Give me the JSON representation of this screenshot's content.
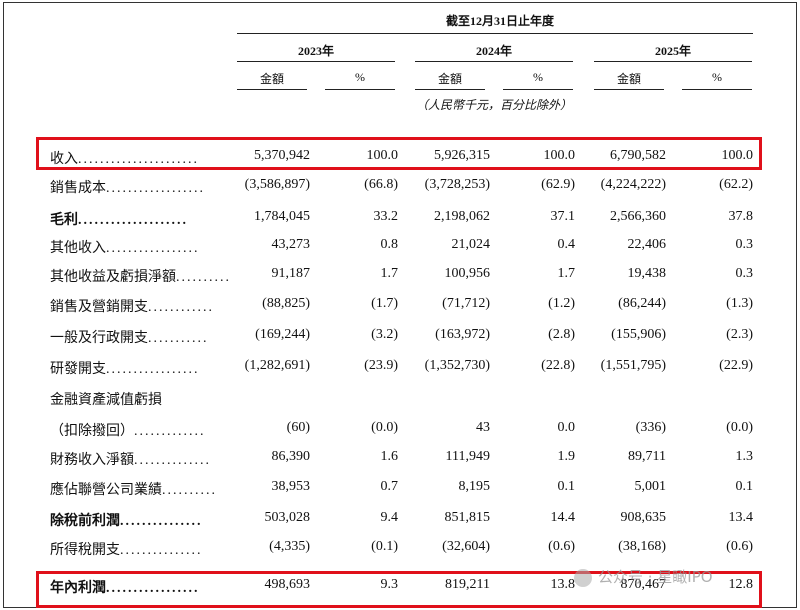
{
  "header": {
    "period": "截至12月31日止年度",
    "years": [
      "2023年",
      "2024年",
      "2025年"
    ],
    "col_amount": "金額",
    "col_pct": "%",
    "unit": "（人民幣千元，百分比除外）"
  },
  "rows": [
    {
      "label": "收入",
      "dots": "......................",
      "v": [
        "5,370,942",
        "100.0",
        "5,926,315",
        "100.0",
        "6,790,582",
        "100.0"
      ]
    },
    {
      "label": "銷售成本",
      "dots": "..................",
      "v": [
        "(3,586,897)",
        "(66.8)",
        "(3,728,253)",
        "(62.9)",
        "(4,224,222)",
        "(62.2)"
      ]
    },
    {
      "label": "毛利",
      "dots": "....................",
      "v": [
        "1,784,045",
        "33.2",
        "2,198,062",
        "37.1",
        "2,566,360",
        "37.8"
      ]
    },
    {
      "label": "其他收入",
      "dots": ".................",
      "v": [
        "43,273",
        "0.8",
        "21,024",
        "0.4",
        "22,406",
        "0.3"
      ]
    },
    {
      "label": "其他收益及虧損淨額",
      "dots": "..........",
      "v": [
        "91,187",
        "1.7",
        "100,956",
        "1.7",
        "19,438",
        "0.3"
      ]
    },
    {
      "label": "銷售及營銷開支",
      "dots": "............",
      "v": [
        "(88,825)",
        "(1.7)",
        "(71,712)",
        "(1.2)",
        "(86,244)",
        "(1.3)"
      ]
    },
    {
      "label": "一般及行政開支",
      "dots": "...........",
      "v": [
        "(169,244)",
        "(3.2)",
        "(163,972)",
        "(2.8)",
        "(155,906)",
        "(2.3)"
      ]
    },
    {
      "label": "研發開支",
      "dots": ".................",
      "v": [
        "(1,282,691)",
        "(23.9)",
        "(1,352,730)",
        "(22.8)",
        "(1,551,795)",
        "(22.9)"
      ]
    },
    {
      "label": "金融資產減值虧損",
      "dots": "",
      "v": [
        "",
        "",
        "",
        "",
        "",
        ""
      ]
    },
    {
      "label": "（扣除撥回）",
      "dots": ".............",
      "v": [
        "(60)",
        "(0.0)",
        "43",
        "0.0",
        "(336)",
        "(0.0)"
      ]
    },
    {
      "label": "財務收入淨額",
      "dots": "..............",
      "v": [
        "86,390",
        "1.6",
        "111,949",
        "1.9",
        "89,711",
        "1.3"
      ]
    },
    {
      "label": "應佔聯營公司業績",
      "dots": "..........",
      "v": [
        "38,953",
        "0.7",
        "8,195",
        "0.1",
        "5,001",
        "0.1"
      ]
    },
    {
      "label": "除稅前利潤",
      "dots": "...............",
      "v": [
        "503,028",
        "9.4",
        "851,815",
        "14.4",
        "908,635",
        "13.4"
      ]
    },
    {
      "label": "所得稅開支",
      "dots": "...............",
      "v": [
        "(4,335)",
        "(0.1)",
        "(32,604)",
        "(0.6)",
        "(38,168)",
        "(0.6)"
      ]
    },
    {
      "label": "年內利潤",
      "dots": ".................",
      "v": [
        "498,693",
        "9.3",
        "819,211",
        "13.8",
        "870,467",
        "12.8"
      ]
    }
  ],
  "watermark": "公众号 · 星瞰IPO",
  "highlight_color": "#e0101a"
}
